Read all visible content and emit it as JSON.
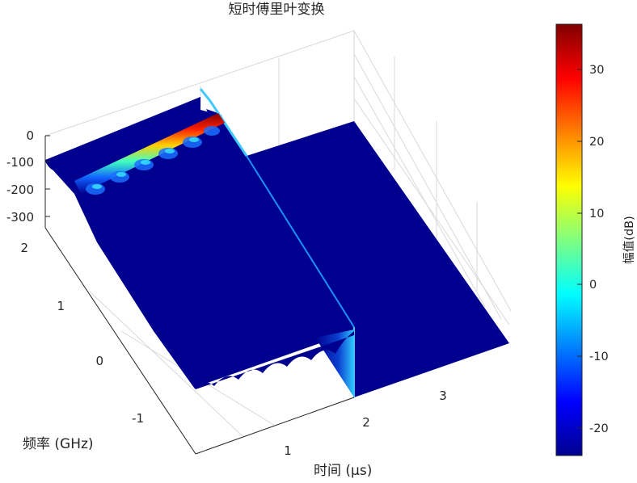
{
  "chart_data": {
    "type": "surface",
    "title": "短时傅里叶变换",
    "xlabel": "时间 (μs)",
    "ylabel": "频率 (GHz)",
    "zlabel": "",
    "colorbar_label": "幅值(dB)",
    "colormap": "jet",
    "x_ticks": [
      "1",
      "2",
      "3"
    ],
    "y_ticks": [
      "-1",
      "0",
      "1",
      "2"
    ],
    "z_ticks": [
      "0",
      "-100",
      "-200",
      "-300"
    ],
    "colorbar_ticks": [
      "30",
      "20",
      "10",
      "0",
      "-10",
      "-20"
    ],
    "colorbar_range": [
      -24,
      36
    ],
    "grid": true,
    "colors": {
      "background_floor": "#00008f",
      "peak": "#800000",
      "axis_text": "#262626"
    }
  }
}
